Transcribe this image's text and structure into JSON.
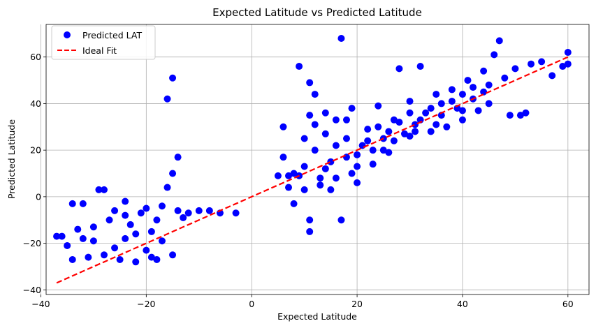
{
  "chart_data": {
    "type": "scatter",
    "title": "Expected Latitude vs Predicted Latitude",
    "xlabel": "Expected Latitude",
    "ylabel": "Predicted Latitude",
    "xlim": [
      -39,
      64
    ],
    "ylim": [
      -42,
      74
    ],
    "xticks": [
      -40,
      -20,
      0,
      20,
      40,
      60
    ],
    "yticks": [
      -40,
      -20,
      0,
      20,
      40,
      60
    ],
    "grid": true,
    "legend_position": "upper left",
    "series": [
      {
        "name": "Predicted LAT",
        "kind": "scatter",
        "color": "#0000ff",
        "points": [
          [
            -37,
            -17
          ],
          [
            -36,
            -17
          ],
          [
            -35,
            -21
          ],
          [
            -34,
            -27
          ],
          [
            -34,
            -3
          ],
          [
            -33,
            -14
          ],
          [
            -32,
            -3
          ],
          [
            -31,
            -26
          ],
          [
            -30,
            -19
          ],
          [
            -29,
            3
          ],
          [
            -28,
            3
          ],
          [
            -28,
            -25
          ],
          [
            -27,
            -10
          ],
          [
            -26,
            -22
          ],
          [
            -25,
            -27
          ],
          [
            -24,
            -2
          ],
          [
            -23,
            -12
          ],
          [
            -22,
            -28
          ],
          [
            -21,
            -7
          ],
          [
            -20,
            -23
          ],
          [
            -19,
            -15
          ],
          [
            -18,
            -27
          ],
          [
            -17,
            -4
          ],
          [
            -16,
            42
          ],
          [
            -15,
            51
          ],
          [
            -15,
            10
          ],
          [
            -16,
            4
          ],
          [
            -14,
            17
          ],
          [
            -14,
            -6
          ],
          [
            -13,
            -9
          ],
          [
            -12,
            -7
          ],
          [
            -10,
            -6
          ],
          [
            -8,
            -6
          ],
          [
            -6,
            -7
          ],
          [
            -3,
            -7
          ],
          [
            -26,
            -6
          ],
          [
            -24,
            -18
          ],
          [
            -22,
            -16
          ],
          [
            -20,
            -5
          ],
          [
            -18,
            -10
          ],
          [
            -17,
            -19
          ],
          [
            -15,
            -25
          ],
          [
            -19,
            -26
          ],
          [
            -24,
            -8
          ],
          [
            -30,
            -13
          ],
          [
            -32,
            -18
          ],
          [
            5,
            9
          ],
          [
            6,
            17
          ],
          [
            6,
            30
          ],
          [
            7,
            4
          ],
          [
            8,
            10
          ],
          [
            8,
            -3
          ],
          [
            9,
            56
          ],
          [
            10,
            13
          ],
          [
            10,
            25
          ],
          [
            11,
            35
          ],
          [
            11,
            -10
          ],
          [
            11,
            -15
          ],
          [
            11,
            49
          ],
          [
            12,
            44
          ],
          [
            12,
            20
          ],
          [
            13,
            8
          ],
          [
            14,
            27
          ],
          [
            15,
            3
          ],
          [
            16,
            33
          ],
          [
            17,
            68
          ],
          [
            17,
            -10
          ],
          [
            18,
            17
          ],
          [
            19,
            38
          ],
          [
            20,
            6
          ],
          [
            21,
            22
          ],
          [
            22,
            29
          ],
          [
            23,
            14
          ],
          [
            24,
            39
          ],
          [
            25,
            25
          ],
          [
            26,
            19
          ],
          [
            27,
            33
          ],
          [
            28,
            55
          ],
          [
            29,
            27
          ],
          [
            30,
            41
          ],
          [
            31,
            31
          ],
          [
            32,
            56
          ],
          [
            33,
            36
          ],
          [
            34,
            28
          ],
          [
            35,
            44
          ],
          [
            36,
            35
          ],
          [
            37,
            30
          ],
          [
            38,
            46
          ],
          [
            39,
            38
          ],
          [
            40,
            33
          ],
          [
            41,
            50
          ],
          [
            42,
            42
          ],
          [
            43,
            37
          ],
          [
            44,
            54
          ],
          [
            45,
            48
          ],
          [
            46,
            61
          ],
          [
            47,
            67
          ],
          [
            48,
            51
          ],
          [
            49,
            35
          ],
          [
            50,
            55
          ],
          [
            51,
            35
          ],
          [
            52,
            36
          ],
          [
            53,
            57
          ],
          [
            55,
            58
          ],
          [
            57,
            52
          ],
          [
            59,
            56
          ],
          [
            60,
            62
          ],
          [
            60,
            57
          ],
          [
            14,
            12
          ],
          [
            16,
            22
          ],
          [
            18,
            25
          ],
          [
            20,
            18
          ],
          [
            22,
            24
          ],
          [
            24,
            30
          ],
          [
            26,
            28
          ],
          [
            28,
            32
          ],
          [
            30,
            36
          ],
          [
            32,
            33
          ],
          [
            34,
            38
          ],
          [
            36,
            40
          ],
          [
            38,
            41
          ],
          [
            40,
            44
          ],
          [
            42,
            47
          ],
          [
            44,
            45
          ],
          [
            20,
            13
          ],
          [
            25,
            20
          ],
          [
            30,
            26
          ],
          [
            35,
            31
          ],
          [
            40,
            37
          ],
          [
            45,
            40
          ],
          [
            13,
            5
          ],
          [
            15,
            15
          ],
          [
            19,
            10
          ],
          [
            23,
            20
          ],
          [
            27,
            24
          ],
          [
            31,
            28
          ],
          [
            9,
            9
          ],
          [
            7,
            9
          ],
          [
            12,
            31
          ],
          [
            14,
            36
          ],
          [
            18,
            33
          ],
          [
            10,
            3
          ],
          [
            16,
            8
          ]
        ]
      },
      {
        "name": "Ideal Fit",
        "kind": "line",
        "color": "#ff0000",
        "style": "dashed",
        "points": [
          [
            -37,
            -37
          ],
          [
            60,
            60
          ]
        ]
      }
    ]
  }
}
